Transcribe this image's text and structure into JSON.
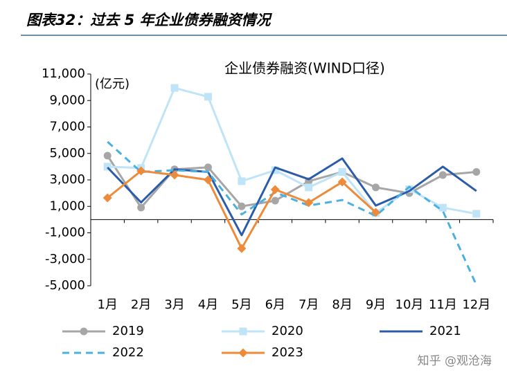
{
  "header": {
    "title": "图表32：过去 5 年企业债券融资情况"
  },
  "chart_data": {
    "type": "line",
    "title": "企业债券融资(WIND口径)",
    "y_label": "(亿元)",
    "categories": [
      "1月",
      "2月",
      "3月",
      "4月",
      "5月",
      "6月",
      "7月",
      "8月",
      "9月",
      "10月",
      "11月",
      "12月"
    ],
    "ylim": [
      -5000,
      11000
    ],
    "yticks": [
      {
        "value": 11000,
        "label": "11,000"
      },
      {
        "value": 9000,
        "label": "9,000"
      },
      {
        "value": 7000,
        "label": "7,000"
      },
      {
        "value": 5000,
        "label": "5,000"
      },
      {
        "value": 3000,
        "label": "3,000"
      },
      {
        "value": 1000,
        "label": "1,000"
      },
      {
        "value": -1000,
        "label": "-1,000"
      },
      {
        "value": -3000,
        "label": "-3,000"
      },
      {
        "value": -5000,
        "label": "-5,000"
      }
    ],
    "legend": "bottom",
    "series": [
      {
        "name": "2019",
        "color": "#a6a6a6",
        "marker": "circle",
        "dash": false,
        "values": [
          4830,
          910,
          3800,
          3950,
          1000,
          1430,
          2900,
          3600,
          2430,
          2000,
          3370,
          3600
        ]
      },
      {
        "name": "2020",
        "color": "#bfe4f7",
        "marker": "square",
        "dash": false,
        "values": [
          4000,
          3900,
          9950,
          9280,
          2900,
          3730,
          2430,
          3600,
          500,
          2300,
          900,
          440
        ]
      },
      {
        "name": "2021",
        "color": "#2a5caa",
        "marker": "none",
        "dash": false,
        "values": [
          3940,
          1300,
          3800,
          3600,
          -1180,
          3940,
          3050,
          4620,
          1060,
          2160,
          4000,
          2160
        ]
      },
      {
        "name": "2022",
        "color": "#4ab0e0",
        "marker": "none",
        "dash": true,
        "values": [
          5880,
          3600,
          3730,
          3600,
          390,
          2060,
          1060,
          1480,
          280,
          2480,
          650,
          -4940
        ]
      },
      {
        "name": "2023",
        "color": "#ed8b3a",
        "marker": "diamond",
        "dash": false,
        "values": [
          1640,
          3680,
          3370,
          3000,
          -2180,
          2270,
          1280,
          2840,
          540,
          null,
          null,
          null
        ]
      }
    ]
  },
  "watermark": "知乎 @观沧海"
}
